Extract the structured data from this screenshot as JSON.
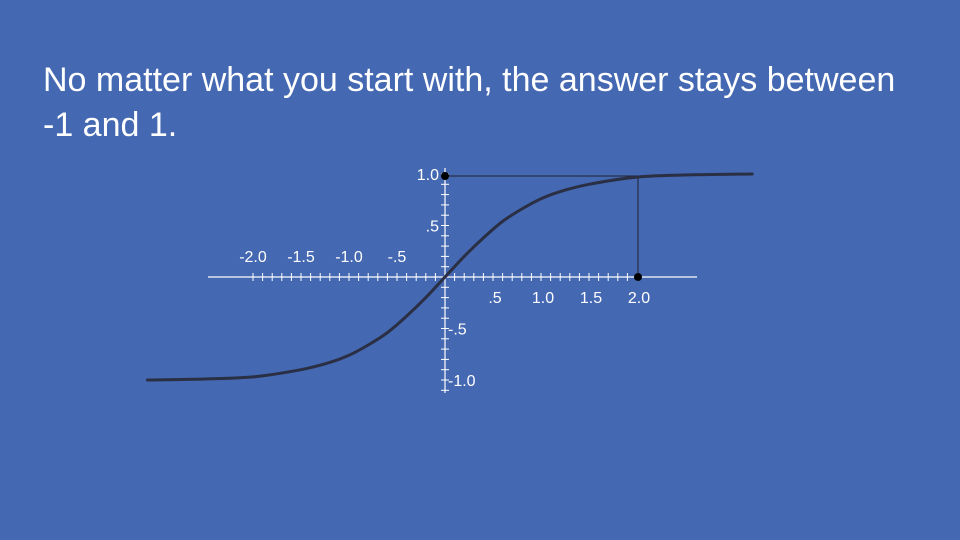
{
  "slide": {
    "title": "No matter what you start with, the answer stays between -1 and 1."
  },
  "colors": {
    "background": "#4468b1",
    "text": "#ffffff",
    "curve": "#2a2f44",
    "guide": "#1f2230"
  },
  "chart_data": {
    "type": "line",
    "title": "",
    "xlabel": "",
    "ylabel": "",
    "x_tick_labels": [
      {
        "value": -2.0,
        "label": "-2.0"
      },
      {
        "value": -1.5,
        "label": "-1.5"
      },
      {
        "value": -1.0,
        "label": "-1.0"
      },
      {
        "value": -0.5,
        "label": "-.5"
      },
      {
        "value": 0.5,
        "label": ".5"
      },
      {
        "value": 1.0,
        "label": "1.0"
      },
      {
        "value": 1.5,
        "label": "1.5"
      },
      {
        "value": 2.0,
        "label": "2.0"
      }
    ],
    "y_tick_labels": [
      {
        "value": 1.0,
        "label": "1.0"
      },
      {
        "value": 0.5,
        "label": ".5"
      },
      {
        "value": -0.5,
        "label": "-.5"
      },
      {
        "value": -1.0,
        "label": "-1.0"
      }
    ],
    "xlim": [
      -3.1,
      3.2
    ],
    "ylim": [
      -1.1,
      1.1
    ],
    "series": [
      {
        "x": [
          -3.1,
          -2.5,
          -2.0,
          -1.5,
          -1.2,
          -1.0,
          -0.8,
          -0.6,
          -0.4,
          -0.2,
          0.0,
          0.2,
          0.4,
          0.6,
          0.8,
          1.0,
          1.2,
          1.5,
          2.0,
          2.5,
          3.2
        ],
        "y": [
          -1.0,
          -0.99,
          -0.97,
          -0.9,
          -0.83,
          -0.76,
          -0.66,
          -0.54,
          -0.38,
          -0.2,
          0.0,
          0.2,
          0.38,
          0.54,
          0.66,
          0.76,
          0.83,
          0.9,
          0.97,
          0.99,
          1.0
        ]
      }
    ],
    "highlight_points": [
      {
        "x": 0.0,
        "y": 1.0
      },
      {
        "x": 2.0,
        "y": 0.0
      }
    ],
    "guide_lines": {
      "horizontal_at_y": 1.0,
      "vertical_at_x": 2.0
    },
    "minor_tick_step": 0.1,
    "grid": false,
    "legend": "none"
  }
}
